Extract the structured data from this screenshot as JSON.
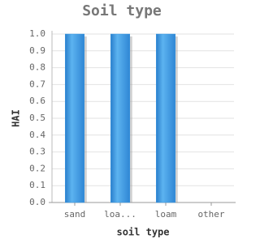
{
  "chart_data": {
    "type": "bar",
    "title": "Soil type",
    "x_label": "soil type",
    "y_label": "HAI",
    "categories": [
      "sand",
      "loa...",
      "loam",
      "other"
    ],
    "values": [
      1.0,
      1.0,
      1.0,
      0
    ],
    "color": "#3d97e0",
    "ylim": [
      0,
      1
    ],
    "yticks": [
      {
        "value": 0,
        "label": "0.0"
      },
      {
        "value": 0.1,
        "label": "0.1"
      },
      {
        "value": 0.2,
        "label": "0.2"
      },
      {
        "value": 0.3,
        "label": "0.3"
      },
      {
        "value": 0.4,
        "label": "0.4"
      },
      {
        "value": 0.5,
        "label": "0.5"
      },
      {
        "value": 0.6,
        "label": "0.6"
      },
      {
        "value": 0.7,
        "label": "0.7"
      },
      {
        "value": 0.8,
        "label": "0.8"
      },
      {
        "value": 0.9,
        "label": "0.9"
      },
      {
        "value": 1,
        "label": "1.0"
      }
    ],
    "grid": true
  }
}
